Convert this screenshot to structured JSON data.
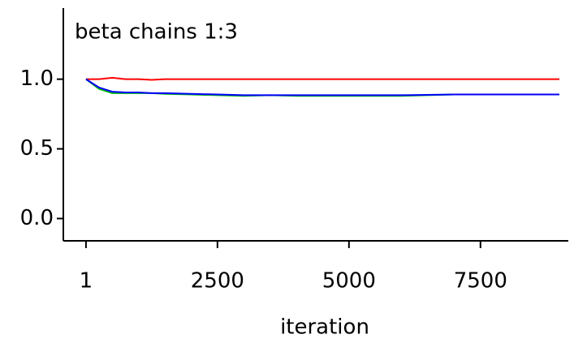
{
  "chart_data": {
    "type": "line",
    "title": "beta chains 1:3",
    "x_label": "iteration",
    "x": [
      1,
      250,
      500,
      750,
      1000,
      1250,
      1500,
      2000,
      2500,
      3000,
      3500,
      4000,
      5000,
      6000,
      7000,
      8000,
      9000
    ],
    "series": [
      {
        "color": "#ff0000",
        "values": [
          1.0,
          1.0,
          1.01,
          1.0,
          1.0,
          0.995,
          1.0,
          1.0,
          1.0,
          1.0,
          1.0,
          1.0,
          1.0,
          1.0,
          1.0,
          1.0,
          1.0
        ]
      },
      {
        "color": "#00c000",
        "values": [
          1.0,
          0.93,
          0.9,
          0.9,
          0.9,
          0.9,
          0.895,
          0.89,
          0.885,
          0.88,
          0.885,
          0.88,
          0.88,
          0.88,
          0.89,
          0.89,
          0.89
        ]
      },
      {
        "color": "#0000ff",
        "values": [
          1.0,
          0.94,
          0.91,
          0.905,
          0.905,
          0.9,
          0.9,
          0.895,
          0.89,
          0.885,
          0.885,
          0.885,
          0.885,
          0.885,
          0.89,
          0.89,
          0.89
        ]
      }
    ],
    "xlim": [
      -430,
      9170
    ],
    "xticks": [
      1,
      2500,
      5000,
      7500
    ],
    "ylim": [
      -0.16,
      1.51
    ],
    "yticks": [
      {
        "value": 0,
        "label": "0.0"
      },
      {
        "value": 0.5,
        "label": "0.5"
      },
      {
        "value": 1,
        "label": "1.0"
      }
    ]
  }
}
